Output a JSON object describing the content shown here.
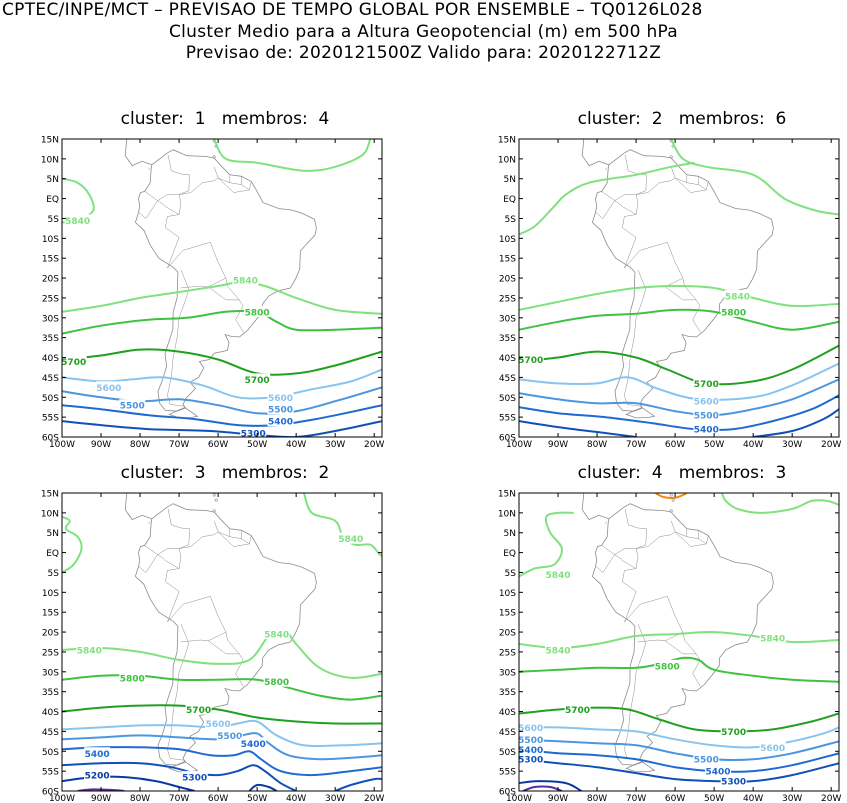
{
  "header": {
    "line1": "CPTEC/INPE/MCT – PREVISAO DE TEMPO GLOBAL POR ENSEMBLE – TQ0126L028",
    "line2": "Cluster Medio para a Altura Geopotencial (m) em 500 hPa",
    "line3": "Previsao de: 2020121500Z    Valido para: 2020122712Z"
  },
  "axes": {
    "lat_labels": [
      "15N",
      "10N",
      "5N",
      "EQ",
      "5S",
      "10S",
      "15S",
      "20S",
      "25S",
      "30S",
      "35S",
      "40S",
      "45S",
      "50S",
      "55S",
      "60S"
    ],
    "lon_labels": [
      "100W",
      "90W",
      "80W",
      "70W",
      "60W",
      "50W",
      "40W",
      "30W",
      "20W"
    ]
  },
  "colors": {
    "c5840": "#7fe27f",
    "c5800": "#3fc23f",
    "c5700": "#1fa01f",
    "c5600": "#88c4f0",
    "c5500": "#4a96e0",
    "c5400": "#1f6ad0",
    "c5300": "#1050b8",
    "c5200": "#0a3aa0",
    "c5100": "#5a2aa8",
    "c5900": "#f08a10",
    "land": "#8c8c8c"
  },
  "panels": [
    {
      "title": "cluster:  1   membros:  4",
      "labels": [
        {
          "text": "5840",
          "lon": -96,
          "lat": -5.5,
          "c": "c5840"
        },
        {
          "text": "5840",
          "lon": -53,
          "lat": -20.5,
          "c": "c5840"
        },
        {
          "text": "5800",
          "lon": -50,
          "lat": -28.5,
          "c": "c5800"
        },
        {
          "text": "5700",
          "lon": -97,
          "lat": -41,
          "c": "c5700"
        },
        {
          "text": "5700",
          "lon": -50,
          "lat": -45.5,
          "c": "c5700"
        },
        {
          "text": "5600",
          "lon": -88,
          "lat": -47.5,
          "c": "c5600"
        },
        {
          "text": "5600",
          "lon": -44,
          "lat": -50,
          "c": "c5600"
        },
        {
          "text": "5500",
          "lon": -82,
          "lat": -52,
          "c": "c5500"
        },
        {
          "text": "5500",
          "lon": -44,
          "lat": -53,
          "c": "c5500"
        },
        {
          "text": "5400",
          "lon": -44,
          "lat": -56,
          "c": "c5400"
        },
        {
          "text": "5300",
          "lon": -51,
          "lat": -59,
          "c": "c5300"
        }
      ]
    },
    {
      "title": "cluster:  2   membros:  6",
      "labels": [
        {
          "text": "5840",
          "lon": -44,
          "lat": -24.5,
          "c": "c5840"
        },
        {
          "text": "5800",
          "lon": -45,
          "lat": -28.5,
          "c": "c5800"
        },
        {
          "text": "5700",
          "lon": -97,
          "lat": -40.5,
          "c": "c5700"
        },
        {
          "text": "5700",
          "lon": -52,
          "lat": -46.5,
          "c": "c5700"
        },
        {
          "text": "5600",
          "lon": -52,
          "lat": -51,
          "c": "c5600"
        },
        {
          "text": "5500",
          "lon": -52,
          "lat": -54.5,
          "c": "c5500"
        },
        {
          "text": "5400",
          "lon": -52,
          "lat": -58,
          "c": "c5400"
        }
      ]
    },
    {
      "title": "cluster:  3   membros:  2",
      "labels": [
        {
          "text": "5840",
          "lon": -26,
          "lat": 3.5,
          "c": "c5840"
        },
        {
          "text": "5840",
          "lon": -93,
          "lat": -24.5,
          "c": "c5840"
        },
        {
          "text": "5840",
          "lon": -45,
          "lat": -20.5,
          "c": "c5840"
        },
        {
          "text": "5800",
          "lon": -82,
          "lat": -31.5,
          "c": "c5800"
        },
        {
          "text": "5800",
          "lon": -45,
          "lat": -32.5,
          "c": "c5800"
        },
        {
          "text": "5700",
          "lon": -65,
          "lat": -39.5,
          "c": "c5700"
        },
        {
          "text": "5600",
          "lon": -60,
          "lat": -43,
          "c": "c5600"
        },
        {
          "text": "5500",
          "lon": -57,
          "lat": -46,
          "c": "c5500"
        },
        {
          "text": "5400",
          "lon": -91,
          "lat": -50.5,
          "c": "c5400"
        },
        {
          "text": "5400",
          "lon": -51,
          "lat": -48,
          "c": "c5400"
        },
        {
          "text": "5300",
          "lon": -66,
          "lat": -56.5,
          "c": "c5300"
        },
        {
          "text": "5200",
          "lon": -91,
          "lat": -56,
          "c": "c5200"
        }
      ]
    },
    {
      "title": "cluster:  4   membros:  3",
      "labels": [
        {
          "text": "5840",
          "lon": -90,
          "lat": -5.5,
          "c": "c5840"
        },
        {
          "text": "5840",
          "lon": -35,
          "lat": -21.5,
          "c": "c5840"
        },
        {
          "text": "5840",
          "lon": -90,
          "lat": -24.5,
          "c": "c5840"
        },
        {
          "text": "5800",
          "lon": -62,
          "lat": -28.5,
          "c": "c5800"
        },
        {
          "text": "5700",
          "lon": -85,
          "lat": -39.5,
          "c": "c5700"
        },
        {
          "text": "5700",
          "lon": -45,
          "lat": -45,
          "c": "c5700"
        },
        {
          "text": "5600",
          "lon": -97,
          "lat": -44,
          "c": "c5600"
        },
        {
          "text": "5600",
          "lon": -35,
          "lat": -49,
          "c": "c5600"
        },
        {
          "text": "5500",
          "lon": -97,
          "lat": -47,
          "c": "c5500"
        },
        {
          "text": "5500",
          "lon": -52,
          "lat": -52,
          "c": "c5500"
        },
        {
          "text": "5400",
          "lon": -97,
          "lat": -49.5,
          "c": "c5400"
        },
        {
          "text": "5400",
          "lon": -49,
          "lat": -55,
          "c": "c5400"
        },
        {
          "text": "5300",
          "lon": -97,
          "lat": -52,
          "c": "c5300"
        },
        {
          "text": "5300",
          "lon": -45,
          "lat": -57.5,
          "c": "c5300"
        }
      ]
    }
  ]
}
